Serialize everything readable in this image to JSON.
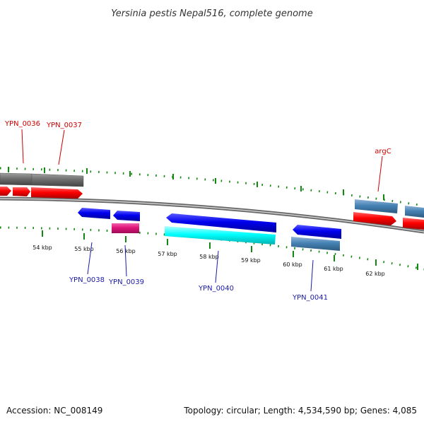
{
  "title": "Yersinia pestis Nepal516, complete genome",
  "colors": {
    "red_gene": "#ff0000",
    "blue_gene": "#0000ee",
    "steel_gene": "#4682b4",
    "gray_gene": "#6e6e6e",
    "magenta_gene": "#e0157a",
    "cyan_gene": "#00ffff",
    "tick": "#118811",
    "backbone": "#888888"
  },
  "scale_labels": [
    "54 kbp",
    "55 kbp",
    "56 kbp",
    "57 kbp",
    "58 kbp",
    "59 kbp",
    "60 kbp",
    "61 kbp",
    "62 kbp"
  ],
  "gene_labels": {
    "top": [
      "YPN_0036",
      "YPN_0037",
      "argC"
    ],
    "bottom": [
      "YPN_0038",
      "YPN_0039",
      "YPN_0040",
      "YPN_0041"
    ]
  },
  "footer": {
    "accession": "Accession: NC_008149",
    "summary": "Topology: circular; Length: 4,534,590 bp; Genes: 4,085"
  }
}
